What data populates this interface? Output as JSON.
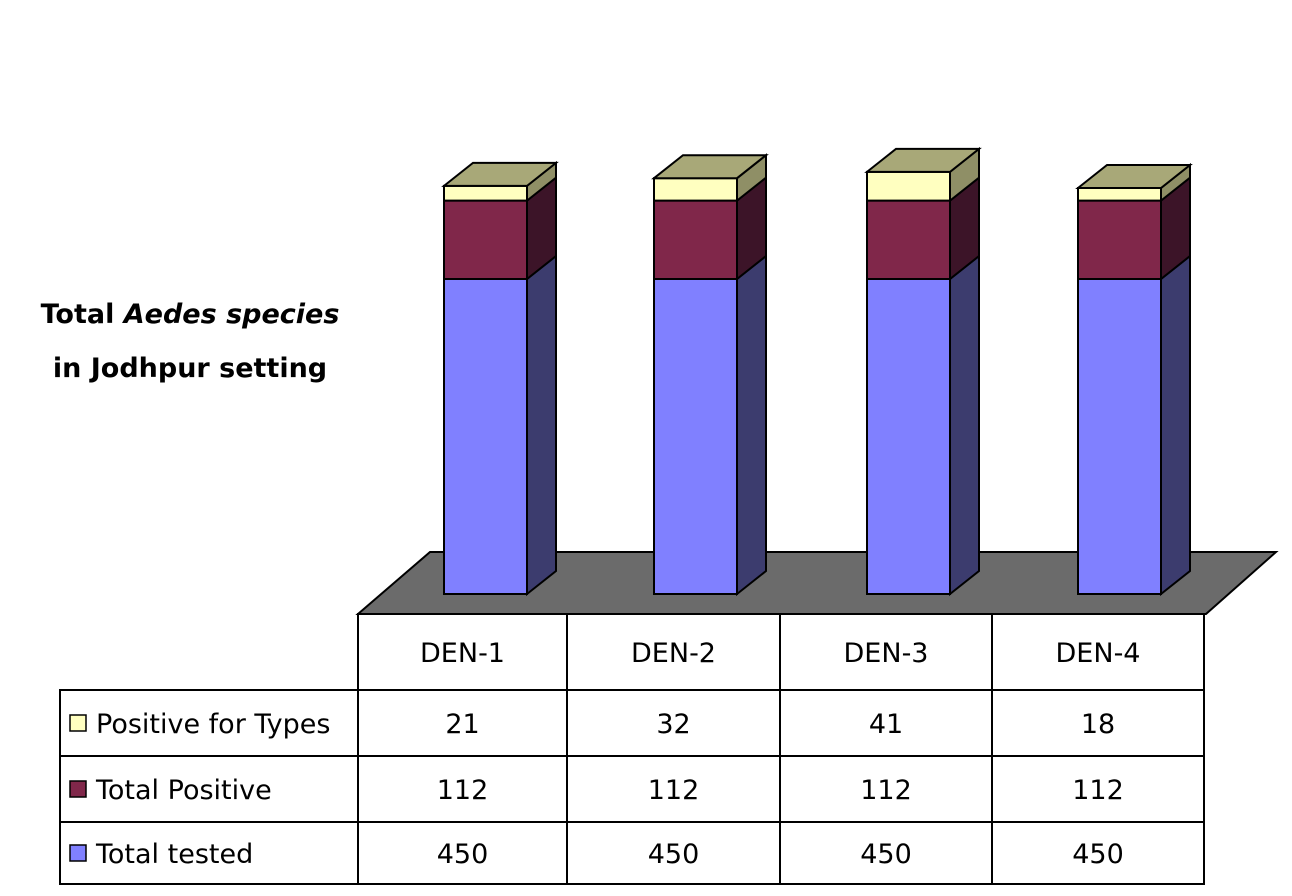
{
  "chart_data": {
    "type": "bar",
    "stacked": true,
    "three_d": true,
    "ylabel_prefix": "Total",
    "ylabel_italic": "Aedes species",
    "ylabel_line2": "in Jodhpur setting",
    "categories": [
      "DEN-1",
      "DEN-2",
      "DEN-3",
      "DEN-4"
    ],
    "series": [
      {
        "name": "Total tested",
        "values": [
          450,
          450,
          450,
          450
        ],
        "color": "#8080ff",
        "side_color": "#3c3c6e"
      },
      {
        "name": "Total Positive",
        "values": [
          112,
          112,
          112,
          112
        ],
        "color": "#80274a",
        "side_color": "#3c1428"
      },
      {
        "name": "Positive for Types",
        "values": [
          21,
          32,
          41,
          18
        ],
        "color": "#ffffc0",
        "side_color": "#8f8f66"
      }
    ],
    "table_row_order": [
      2,
      1,
      0
    ],
    "data_table": true,
    "grid": false,
    "floor_color": "#6b6b6b",
    "top_color": "#a8a878"
  }
}
